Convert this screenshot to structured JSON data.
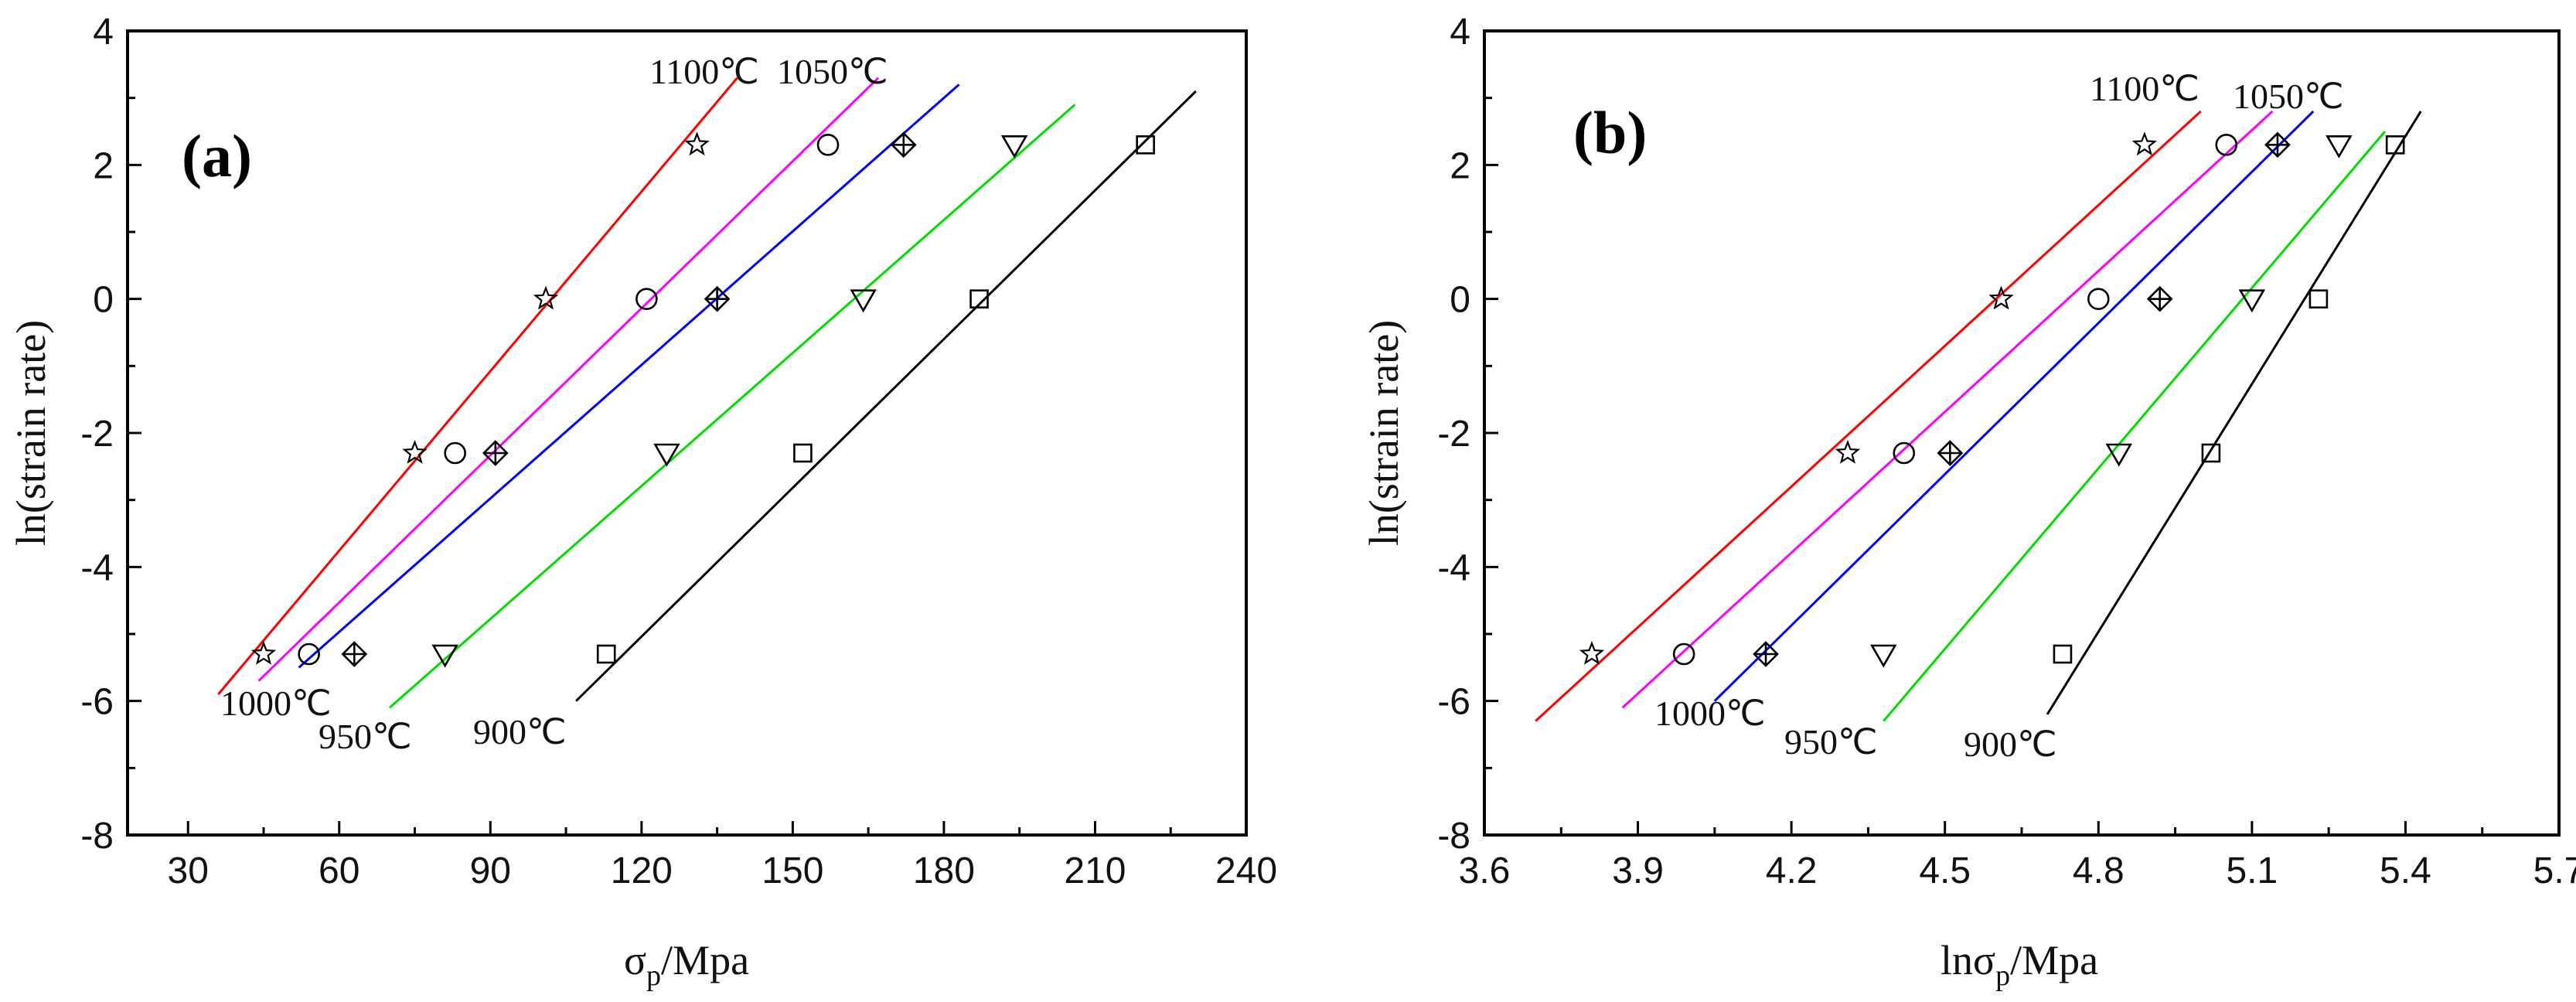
{
  "chart_data": [
    {
      "type": "scatter",
      "panel_label": "(a)",
      "xlabel": "σp/Mpa",
      "xlabel_main": "σ",
      "xlabel_sub": "p",
      "xlabel_tail": "/Mpa",
      "ylabel": "ln(strain rate)",
      "xlim": [
        18,
        240
      ],
      "ylim": [
        -8,
        4
      ],
      "xticks": [
        30,
        60,
        90,
        120,
        150,
        180,
        210,
        240
      ],
      "yticks": [
        -8,
        -6,
        -4,
        -2,
        0,
        2,
        4
      ],
      "xtick_labels": [
        "30",
        "60",
        "90",
        "120",
        "150",
        "180",
        "210",
        "240"
      ],
      "ytick_labels": [
        "-8",
        "-6",
        "-4",
        "-2",
        "0",
        "2",
        "4"
      ],
      "series": [
        {
          "name": "1100℃",
          "label": "1100℃",
          "color": "#ff0000",
          "marker": "star",
          "x": [
            45,
            75,
            101,
            131
          ],
          "y": [
            -5.3,
            -2.3,
            0,
            2.3
          ],
          "fit": [
            [
              36,
              -5.9
            ],
            [
              139,
              3.3
            ]
          ]
        },
        {
          "name": "1050℃",
          "label": "1050℃",
          "color": "#ff00ff",
          "marker": "circle",
          "x": [
            54,
            83,
            121,
            157
          ],
          "y": [
            -5.3,
            -2.3,
            0,
            2.3
          ],
          "fit": [
            [
              44,
              -5.7
            ],
            [
              167,
              3.3
            ]
          ]
        },
        {
          "name": "1000℃",
          "label": "1000℃",
          "color": "#0000ff",
          "marker": "diamond-plus",
          "x": [
            63,
            91,
            135,
            172
          ],
          "y": [
            -5.3,
            -2.3,
            0,
            2.3
          ],
          "fit": [
            [
              52,
              -5.5
            ],
            [
              183,
              3.2
            ]
          ]
        },
        {
          "name": "950℃",
          "label": "950℃",
          "color": "#00dd00",
          "marker": "triangle-down",
          "x": [
            81,
            125,
            164,
            194
          ],
          "y": [
            -5.3,
            -2.3,
            0,
            2.3
          ],
          "fit": [
            [
              70,
              -6.1
            ],
            [
              206,
              2.9
            ]
          ]
        },
        {
          "name": "900℃",
          "label": "900℃",
          "color": "#000000",
          "marker": "square",
          "x": [
            113,
            152,
            187,
            220
          ],
          "y": [
            -5.3,
            -2.3,
            0,
            2.3
          ],
          "fit": [
            [
              107,
              -6.0
            ],
            [
              230,
              3.1
            ]
          ]
        }
      ]
    },
    {
      "type": "scatter",
      "panel_label": "(b)",
      "xlabel": "lnσp/Mpa",
      "xlabel_main": "lnσ",
      "xlabel_sub": "p",
      "xlabel_tail": "/Mpa",
      "ylabel": "ln(strain rate)",
      "xlim": [
        3.6,
        5.7
      ],
      "ylim": [
        -8,
        4
      ],
      "xticks": [
        3.6,
        3.9,
        4.2,
        4.5,
        4.8,
        5.1,
        5.4,
        5.7
      ],
      "yticks": [
        -8,
        -6,
        -4,
        -2,
        0,
        2,
        4
      ],
      "xtick_labels": [
        "3.6",
        "3.9",
        "4.2",
        "4.5",
        "4.8",
        "5.1",
        "5.4",
        "5.7"
      ],
      "ytick_labels": [
        "-8",
        "-6",
        "-4",
        "-2",
        "0",
        "2",
        "4"
      ],
      "series": [
        {
          "name": "1100℃",
          "label": "1100℃",
          "color": "#ff0000",
          "marker": "star",
          "x": [
            3.81,
            4.31,
            4.61,
            4.89
          ],
          "y": [
            -5.3,
            -2.3,
            0,
            2.3
          ],
          "fit": [
            [
              3.7,
              -6.3
            ],
            [
              5.0,
              2.8
            ]
          ]
        },
        {
          "name": "1050℃",
          "label": "1050℃",
          "color": "#ff00ff",
          "marker": "circle",
          "x": [
            3.99,
            4.42,
            4.8,
            5.05
          ],
          "y": [
            -5.3,
            -2.3,
            0,
            2.3
          ],
          "fit": [
            [
              3.87,
              -6.1
            ],
            [
              5.14,
              2.8
            ]
          ]
        },
        {
          "name": "1000℃",
          "label": "1000℃",
          "color": "#0000ff",
          "marker": "diamond-plus",
          "x": [
            4.15,
            4.51,
            4.92,
            5.15
          ],
          "y": [
            -5.3,
            -2.3,
            0,
            2.3
          ],
          "fit": [
            [
              4.05,
              -6.0
            ],
            [
              5.22,
              2.8
            ]
          ]
        },
        {
          "name": "950℃",
          "label": "950℃",
          "color": "#00dd00",
          "marker": "triangle-down",
          "x": [
            4.38,
            4.84,
            5.1,
            5.27
          ],
          "y": [
            -5.3,
            -2.3,
            0,
            2.3
          ],
          "fit": [
            [
              4.38,
              -6.3
            ],
            [
              5.36,
              2.5
            ]
          ]
        },
        {
          "name": "900℃",
          "label": "900℃",
          "color": "#000000",
          "marker": "square",
          "x": [
            4.73,
            5.02,
            5.23,
            5.38
          ],
          "y": [
            -5.3,
            -2.3,
            0,
            2.3
          ],
          "fit": [
            [
              4.7,
              -6.2
            ],
            [
              5.43,
              2.8
            ]
          ]
        }
      ]
    }
  ]
}
